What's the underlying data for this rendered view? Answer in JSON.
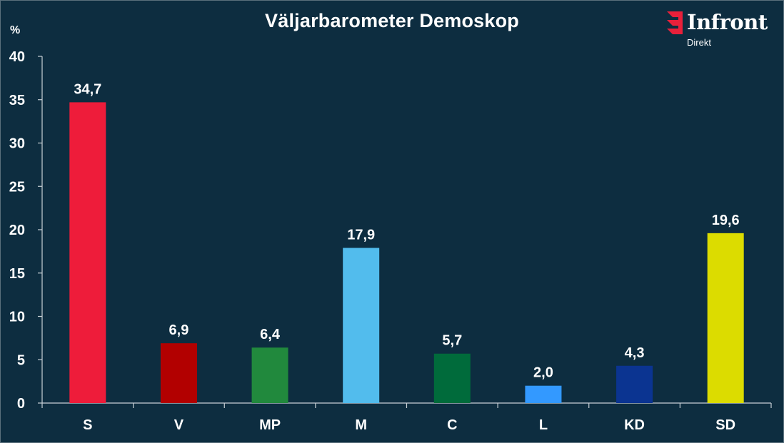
{
  "brand": {
    "name": "Infront",
    "sub": "Direkt",
    "accent": "#e8203a"
  },
  "chart_data": {
    "type": "bar",
    "title": "Väljarbarometer Demoskop",
    "ylabel": "%",
    "xlabel": "",
    "ylim": [
      0,
      40
    ],
    "yticks": [
      0,
      5,
      10,
      15,
      20,
      25,
      30,
      35,
      40
    ],
    "categories": [
      "S",
      "V",
      "MP",
      "M",
      "C",
      "L",
      "KD",
      "SD"
    ],
    "values": [
      34.7,
      6.9,
      6.4,
      17.9,
      5.7,
      2.0,
      4.3,
      19.6
    ],
    "value_labels": [
      "34,7",
      "6,9",
      "6,4",
      "17,9",
      "5,7",
      "2,0",
      "4,3",
      "19,6"
    ],
    "colors": [
      "#ee1c3a",
      "#b20000",
      "#21893d",
      "#52bced",
      "#006b3b",
      "#3399ff",
      "#0b3491",
      "#dcdc00"
    ],
    "grid": false,
    "legend": "none"
  }
}
